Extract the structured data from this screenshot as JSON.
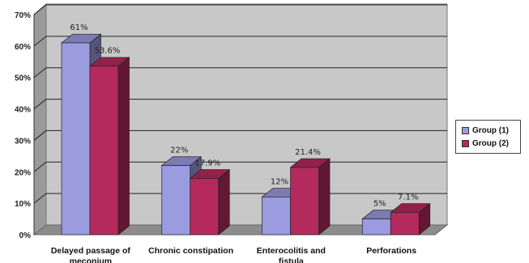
{
  "chart_data": {
    "type": "bar",
    "categories": [
      "Delayed passage of meconium",
      "Chronic constipation",
      "Enterocolitis and fistula",
      "Perforations"
    ],
    "series": [
      {
        "name": "Group (1)",
        "values": [
          61,
          22,
          12,
          5
        ],
        "labels": [
          "61%",
          "22%",
          "12%",
          "5%"
        ],
        "color": "#9b9be0"
      },
      {
        "name": "Group (2)",
        "values": [
          53.6,
          17.9,
          21.4,
          7.1
        ],
        "labels": [
          "53.6%",
          "17.9%",
          "21.4%",
          "7.1%"
        ],
        "color": "#b42a5c"
      }
    ],
    "y_ticks": [
      "0%",
      "10%",
      "20%",
      "30%",
      "40%",
      "50%",
      "60%",
      "70%"
    ],
    "ylim": [
      0,
      70
    ],
    "grid": true,
    "legend_position": "right",
    "plot_background": "#c8c8c8",
    "three_d": true
  }
}
